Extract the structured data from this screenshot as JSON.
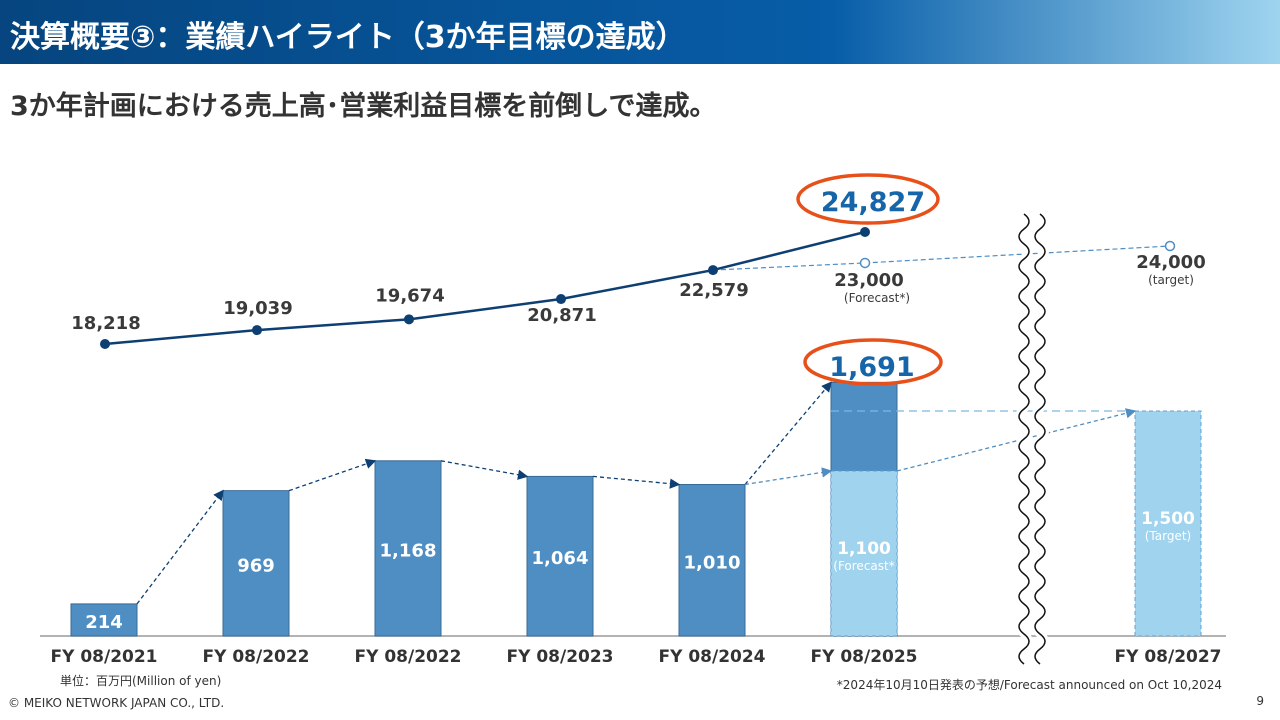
{
  "header": {
    "title": "決算概要③：業績ハイライト（3か年目標の達成）"
  },
  "headline": "3か年計画における売上高･営業利益目標を前倒しで達成。",
  "chart_data": {
    "type": "bar+line",
    "categories": [
      "FY 08/2021",
      "FY 08/2022",
      "FY 08/2022",
      "FY 08/2023",
      "FY 08/2024",
      "FY 08/2025",
      "FY 08/2027"
    ],
    "line_series": {
      "values": [
        18218,
        19039,
        19674,
        20871,
        22579,
        24827,
        null
      ],
      "labels": [
        "18,218",
        "19,039",
        "19,674",
        "20,871",
        "22,579",
        "24,827",
        null
      ],
      "forecast": {
        "value": 23000,
        "label": "23,000",
        "note": "(Forecast*)"
      },
      "target": {
        "value": 24000,
        "label": "24,000",
        "note": "(target)"
      },
      "highlight_color": "#1565a8"
    },
    "bar_series": {
      "values": [
        214,
        969,
        1168,
        1064,
        1010,
        1691,
        null
      ],
      "labels": [
        "214",
        "969",
        "1,168",
        "1,064",
        "1,010",
        "1,691",
        null
      ],
      "forecast": {
        "value": 1100,
        "label": "1,100",
        "note": "(Forecast*"
      },
      "target": {
        "value": 1500,
        "label": "1,500",
        "note": "(Target)"
      }
    },
    "colors": {
      "bar": "#4f8ec3",
      "bar_light": "#9fd3ee",
      "line": "#0d3f73",
      "highlight_ring": "#e8501a"
    },
    "axis_break_between": [
      "FY 08/2025",
      "FY 08/2027"
    ]
  },
  "unit_note": "単位：百万円(Million of yen)",
  "footnote": "*2024年10月10日発表の予想/Forecast announced on Oct 10,2024",
  "copyright": "© MEIKO NETWORK JAPAN CO., LTD.",
  "page_number": "9"
}
